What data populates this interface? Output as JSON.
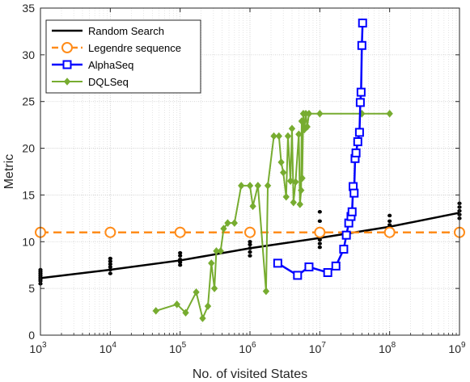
{
  "chart_data": {
    "type": "line",
    "xlabel": "No. of visited States",
    "ylabel": "Metric",
    "xscale": "log",
    "xlim": [
      1000,
      1000000000
    ],
    "ylim": [
      0,
      35
    ],
    "x_tick_labels": [
      {
        "base": "10",
        "exp": "3"
      },
      {
        "base": "10",
        "exp": "4"
      },
      {
        "base": "10",
        "exp": "5"
      },
      {
        "base": "10",
        "exp": "6"
      },
      {
        "base": "10",
        "exp": "7"
      },
      {
        "base": "10",
        "exp": "8"
      },
      {
        "base": "10",
        "exp": "9"
      }
    ],
    "y_tick_labels": [
      "0",
      "5",
      "10",
      "15",
      "20",
      "25",
      "30",
      "35"
    ],
    "grid": true,
    "legend_position": "top-left",
    "series": [
      {
        "name": "Random Search",
        "color": "#000000",
        "marker": "none",
        "x": [
          1000,
          10000,
          100000,
          1000000,
          10000000,
          100000000,
          1000000000
        ],
        "y": [
          6.1,
          7.0,
          8.0,
          9.3,
          10.4,
          11.6,
          13.1
        ]
      },
      {
        "name": "Legendre sequence",
        "color": "#ff8c1a",
        "marker": "circle",
        "dashed": true,
        "x": [
          1000,
          10000,
          100000,
          1000000,
          10000000,
          100000000,
          1000000000
        ],
        "y": [
          11,
          11,
          11,
          11,
          11,
          11,
          11
        ]
      },
      {
        "name": "AlphaSeq",
        "color": "#0000ff",
        "marker": "square",
        "x": [
          2500000,
          4800000,
          7000000,
          13000000,
          17000000,
          22000000,
          24000000,
          26000000,
          28000000,
          29000000,
          30000000,
          31000000,
          32000000,
          33000000,
          35000000,
          37000000,
          38000000,
          39000000,
          40000000,
          41000000
        ],
        "y": [
          7.7,
          6.4,
          7.3,
          6.7,
          7.4,
          9.2,
          10.7,
          12.0,
          12.7,
          13.2,
          15.9,
          15.2,
          18.9,
          19.5,
          20.7,
          21.7,
          24.9,
          26.0,
          31.0,
          33.4
        ]
      },
      {
        "name": "DQLSeq",
        "color": "#77ac30",
        "marker": "diamond",
        "x": [
          45000,
          90000,
          120000,
          170000,
          210000,
          250000,
          280000,
          310000,
          330000,
          380000,
          420000,
          480000,
          600000,
          750000,
          1000000,
          1100000,
          1300000,
          1700000,
          1800000,
          2200000,
          2600000,
          2800000,
          3000000,
          3300000,
          3500000,
          3800000,
          4000000,
          4200000,
          4500000,
          5000000,
          5200000,
          5400000,
          5500000,
          5600000,
          5800000,
          6000000,
          6300000,
          6600000,
          7000000,
          10000000,
          40000000,
          100000000
        ],
        "y": [
          2.6,
          3.3,
          2.4,
          4.6,
          1.8,
          3.1,
          7.7,
          5.0,
          9.0,
          9.0,
          11.4,
          12.0,
          12.0,
          16.0,
          16.0,
          13.8,
          16.0,
          4.7,
          16.0,
          21.3,
          21.3,
          18.5,
          17.4,
          14.8,
          21.3,
          16.5,
          22.1,
          14.2,
          16.4,
          21.5,
          14.0,
          15.5,
          22.9,
          16.8,
          23.7,
          22.0,
          23.7,
          22.3,
          23.7,
          23.7,
          23.7,
          23.7
        ]
      },
      {
        "name": "Random Search samples",
        "color": "#000000",
        "marker": "dot",
        "x": [
          1000,
          1000,
          1000,
          1000,
          1000,
          1000,
          1000,
          1000,
          10000,
          10000,
          10000,
          10000,
          10000,
          10000,
          100000,
          100000,
          100000,
          100000,
          100000,
          1000000,
          1000000,
          1000000,
          1000000,
          1000000,
          10000000,
          10000000,
          10000000,
          10000000,
          10000000,
          10000000,
          100000000,
          100000000,
          100000000,
          100000000,
          100000000,
          1000000000,
          1000000000,
          1000000000,
          1000000000,
          1000000000
        ],
        "y": [
          5.5,
          5.8,
          6.0,
          6.2,
          6.4,
          6.6,
          6.8,
          7.0,
          6.6,
          7.0,
          7.3,
          7.6,
          7.9,
          8.2,
          7.5,
          7.8,
          8.1,
          8.5,
          8.8,
          8.5,
          8.9,
          9.3,
          9.7,
          10.0,
          9.4,
          9.8,
          10.2,
          10.6,
          12.2,
          13.2,
          11.0,
          11.4,
          11.8,
          12.2,
          12.8,
          12.5,
          12.9,
          13.3,
          13.7,
          14.1
        ]
      }
    ]
  }
}
